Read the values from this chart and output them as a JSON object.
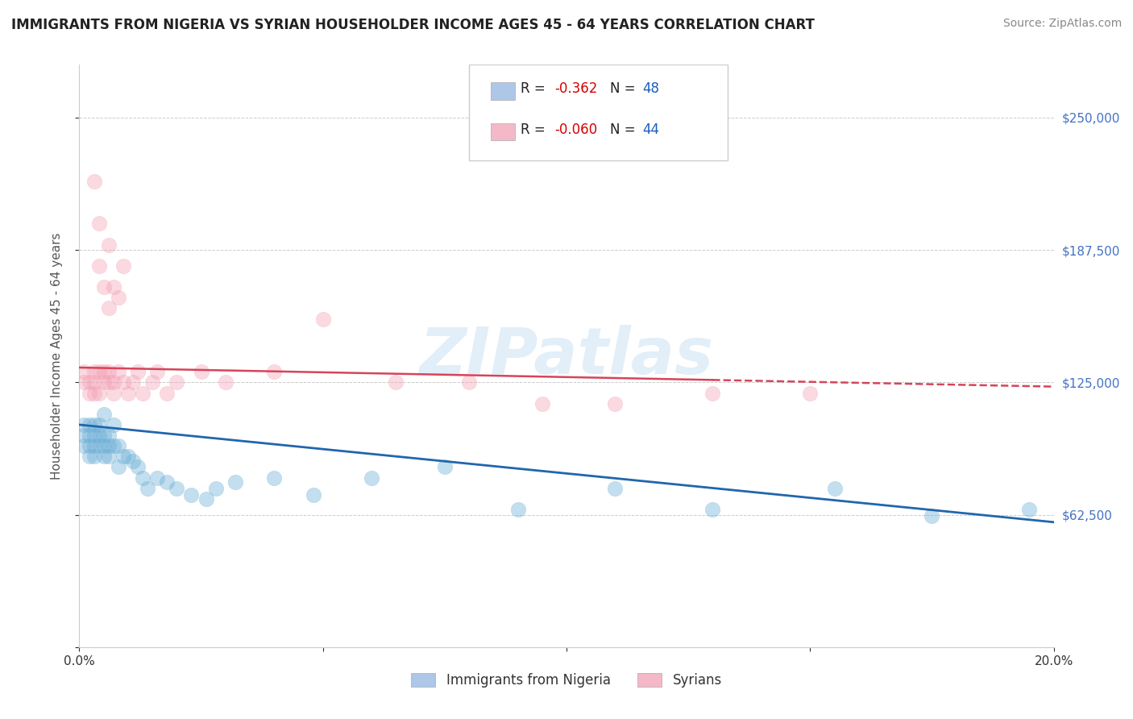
{
  "title": "IMMIGRANTS FROM NIGERIA VS SYRIAN HOUSEHOLDER INCOME AGES 45 - 64 YEARS CORRELATION CHART",
  "source": "Source: ZipAtlas.com",
  "ylabel": "Householder Income Ages 45 - 64 years",
  "xlim": [
    0.0,
    0.2
  ],
  "ylim": [
    0,
    275000
  ],
  "yticks": [
    0,
    62500,
    125000,
    187500,
    250000
  ],
  "ytick_labels": [
    "",
    "$62,500",
    "$125,000",
    "$187,500",
    "$250,000"
  ],
  "xticks": [
    0.0,
    0.05,
    0.1,
    0.15,
    0.2
  ],
  "xtick_labels": [
    "0.0%",
    "",
    "",
    "",
    "20.0%"
  ],
  "nigeria_color": "#6baed6",
  "syria_color": "#f4a0b5",
  "nigeria_line_color": "#2166ac",
  "syria_line_color": "#d6445a",
  "nigeria_line_solid": true,
  "syria_line_dashed": true,
  "legend_box_nigeria_color": "#aec6e8",
  "legend_box_syria_color": "#f4b8c8",
  "legend_r_color": "#d40000",
  "legend_n_color": "#1a5fbd",
  "bottom_legend_labels": [
    "Immigrants from Nigeria",
    "Syrians"
  ],
  "background_color": "#ffffff",
  "grid_color": "#cccccc",
  "watermark": "ZIPatlas",
  "title_fontsize": 12,
  "axis_tick_color": "#4472c4",
  "ylabel_color": "#555555",
  "nigeria_line_intercept": 105000,
  "nigeria_line_slope": -230000,
  "syria_line_intercept": 132000,
  "syria_line_slope": -45000,
  "nigeria_scatter_x": [
    0.001,
    0.001,
    0.001,
    0.002,
    0.002,
    0.002,
    0.002,
    0.003,
    0.003,
    0.003,
    0.003,
    0.004,
    0.004,
    0.004,
    0.005,
    0.005,
    0.005,
    0.005,
    0.006,
    0.006,
    0.006,
    0.007,
    0.007,
    0.008,
    0.008,
    0.009,
    0.01,
    0.011,
    0.012,
    0.013,
    0.014,
    0.016,
    0.018,
    0.02,
    0.023,
    0.026,
    0.028,
    0.032,
    0.04,
    0.048,
    0.06,
    0.075,
    0.09,
    0.11,
    0.13,
    0.155,
    0.175,
    0.195
  ],
  "nigeria_scatter_y": [
    100000,
    95000,
    105000,
    100000,
    95000,
    105000,
    90000,
    100000,
    95000,
    105000,
    90000,
    100000,
    95000,
    105000,
    100000,
    95000,
    90000,
    110000,
    100000,
    95000,
    90000,
    95000,
    105000,
    95000,
    85000,
    90000,
    90000,
    88000,
    85000,
    80000,
    75000,
    80000,
    78000,
    75000,
    72000,
    70000,
    75000,
    78000,
    80000,
    72000,
    80000,
    85000,
    65000,
    75000,
    65000,
    75000,
    62000,
    65000
  ],
  "syria_scatter_x": [
    0.001,
    0.001,
    0.002,
    0.002,
    0.003,
    0.003,
    0.003,
    0.004,
    0.004,
    0.005,
    0.005,
    0.006,
    0.006,
    0.007,
    0.007,
    0.008,
    0.009,
    0.01,
    0.011,
    0.012,
    0.013,
    0.015,
    0.016,
    0.018,
    0.02,
    0.025,
    0.03,
    0.04,
    0.05,
    0.065,
    0.08,
    0.095,
    0.11,
    0.13,
    0.15,
    0.003,
    0.004,
    0.004,
    0.005,
    0.006,
    0.006,
    0.007,
    0.008,
    0.009
  ],
  "syria_scatter_y": [
    125000,
    130000,
    125000,
    120000,
    130000,
    120000,
    125000,
    130000,
    120000,
    125000,
    130000,
    125000,
    130000,
    120000,
    125000,
    130000,
    125000,
    120000,
    125000,
    130000,
    120000,
    125000,
    130000,
    120000,
    125000,
    130000,
    125000,
    130000,
    155000,
    125000,
    125000,
    115000,
    115000,
    120000,
    120000,
    220000,
    200000,
    180000,
    170000,
    160000,
    190000,
    170000,
    165000,
    180000
  ]
}
